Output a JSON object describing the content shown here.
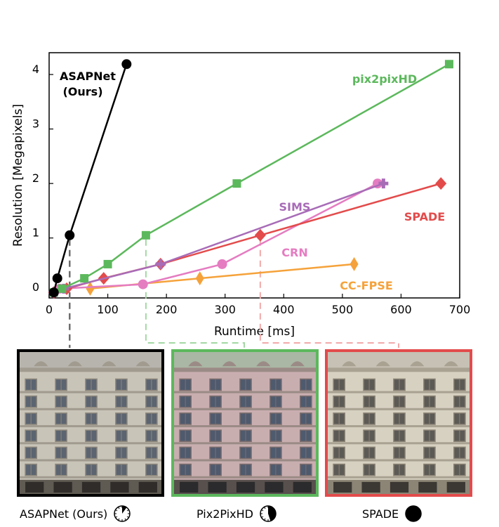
{
  "chart_data": {
    "type": "line",
    "xlabel": "Runtime [ms]",
    "ylabel": "Resolution [Megapixels]",
    "xlim": [
      0,
      700
    ],
    "ylim": [
      -0.1,
      4.4
    ],
    "x_ticks": [
      0,
      100,
      200,
      300,
      400,
      500,
      600,
      700
    ],
    "y_ticks": [
      0,
      1,
      2,
      3,
      4
    ],
    "grid": false,
    "series": [
      {
        "name": "ASAPNet\n(Ours)",
        "color": "#000000",
        "marker": "circle",
        "points": [
          [
            8,
            0.0
          ],
          [
            14,
            0.26
          ],
          [
            35,
            1.05
          ],
          [
            132,
            4.19
          ]
        ]
      },
      {
        "name": "pix2pixHD",
        "color": "#5cb85c",
        "marker": "square",
        "points": [
          [
            8,
            0.0
          ],
          [
            22,
            0.07
          ],
          [
            60,
            0.26
          ],
          [
            100,
            0.52
          ],
          [
            165,
            1.05
          ],
          [
            320,
            2.0
          ],
          [
            682,
            4.19
          ]
        ]
      },
      {
        "name": "SIMS",
        "color": "#a86cb7",
        "marker": "plus",
        "points": [
          [
            8,
            0.0
          ],
          [
            25,
            0.07
          ],
          [
            190,
            0.52
          ],
          [
            570,
            2.0
          ]
        ]
      },
      {
        "name": "SPADE",
        "color": "#e34b4b",
        "marker": "diamond",
        "points": [
          [
            8,
            0.0
          ],
          [
            30,
            0.07
          ],
          [
            93,
            0.26
          ],
          [
            190,
            0.52
          ],
          [
            360,
            1.05
          ],
          [
            668,
            2.0
          ]
        ]
      },
      {
        "name": "CRN",
        "color": "#e57cc1",
        "marker": "circle",
        "points": [
          [
            8,
            0.0
          ],
          [
            18,
            0.07
          ],
          [
            160,
            0.15
          ],
          [
            295,
            0.52
          ],
          [
            560,
            2.0
          ]
        ]
      },
      {
        "name": "CC-FPSE",
        "color": "#f5a23a",
        "marker": "thin-diamond",
        "points": [
          [
            70,
            0.07
          ],
          [
            257,
            0.26
          ],
          [
            520,
            0.52
          ]
        ]
      }
    ],
    "label_colors": {
      "ASAPNet": "#000000",
      "pix2pixHD": "#5cb85c",
      "SIMS": "#a86cb7",
      "SPADE": "#e34b4b",
      "CRN": "#e57cc1",
      "CC-FPSE": "#f5a23a"
    }
  },
  "panels": [
    {
      "caption": "ASAPNet (Ours)",
      "border": "#000000",
      "runtime_fraction": 0.1
    },
    {
      "caption": "Pix2PixHD",
      "border": "#5cb85c",
      "runtime_fraction": 0.45
    },
    {
      "caption": "SPADE",
      "border": "#e34b4b",
      "runtime_fraction": 1.0
    }
  ]
}
